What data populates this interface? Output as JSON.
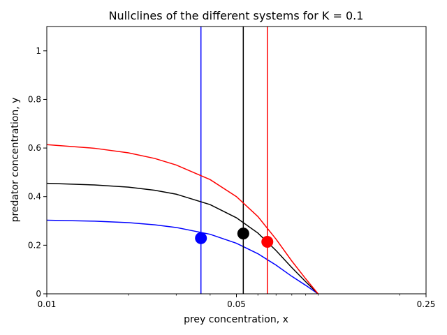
{
  "chart_data": {
    "type": "line",
    "title": "Nullclines of the different systems for K = 0.1",
    "xlabel": "prey concentration, x",
    "ylabel": "predator concentration, y",
    "xscale": "log",
    "xlim": [
      0.01,
      0.25
    ],
    "ylim": [
      0,
      1.1
    ],
    "x_ticks": [
      0.01,
      0.05,
      0.25
    ],
    "x_tick_labels": [
      "0.01",
      "0.05",
      "0.25"
    ],
    "y_ticks": [
      0,
      0.2,
      0.4,
      0.6,
      0.8,
      1.0
    ],
    "y_tick_labels": [
      "0",
      "0.2",
      "0.4",
      "0.6",
      "0.8",
      "1"
    ],
    "grid": false,
    "series": [
      {
        "color": "#0000ff",
        "prey_nullcline": {
          "x": [
            0.01,
            0.015,
            0.02,
            0.025,
            0.03,
            0.04,
            0.05,
            0.06,
            0.07,
            0.08,
            0.09,
            0.1
          ],
          "y": [
            0.303,
            0.299,
            0.293,
            0.284,
            0.273,
            0.245,
            0.208,
            0.165,
            0.118,
            0.072,
            0.035,
            0.0
          ]
        },
        "predator_nullcline_x": 0.037,
        "equilibrium": {
          "x": 0.037,
          "y": 0.229
        }
      },
      {
        "color": "#000000",
        "prey_nullcline": {
          "x": [
            0.01,
            0.015,
            0.02,
            0.025,
            0.03,
            0.04,
            0.05,
            0.06,
            0.07,
            0.08,
            0.09,
            0.1
          ],
          "y": [
            0.455,
            0.448,
            0.439,
            0.426,
            0.41,
            0.367,
            0.313,
            0.25,
            0.178,
            0.108,
            0.05,
            0.0
          ]
        },
        "predator_nullcline_x": 0.053,
        "equilibrium": {
          "x": 0.053,
          "y": 0.248
        }
      },
      {
        "color": "#ff0000",
        "prey_nullcline": {
          "x": [
            0.01,
            0.015,
            0.02,
            0.025,
            0.03,
            0.04,
            0.05,
            0.06,
            0.07,
            0.08,
            0.09,
            0.1
          ],
          "y": [
            0.614,
            0.599,
            0.58,
            0.557,
            0.53,
            0.47,
            0.4,
            0.318,
            0.225,
            0.135,
            0.062,
            0.0
          ]
        },
        "predator_nullcline_x": 0.065,
        "equilibrium": {
          "x": 0.065,
          "y": 0.214
        }
      }
    ]
  }
}
